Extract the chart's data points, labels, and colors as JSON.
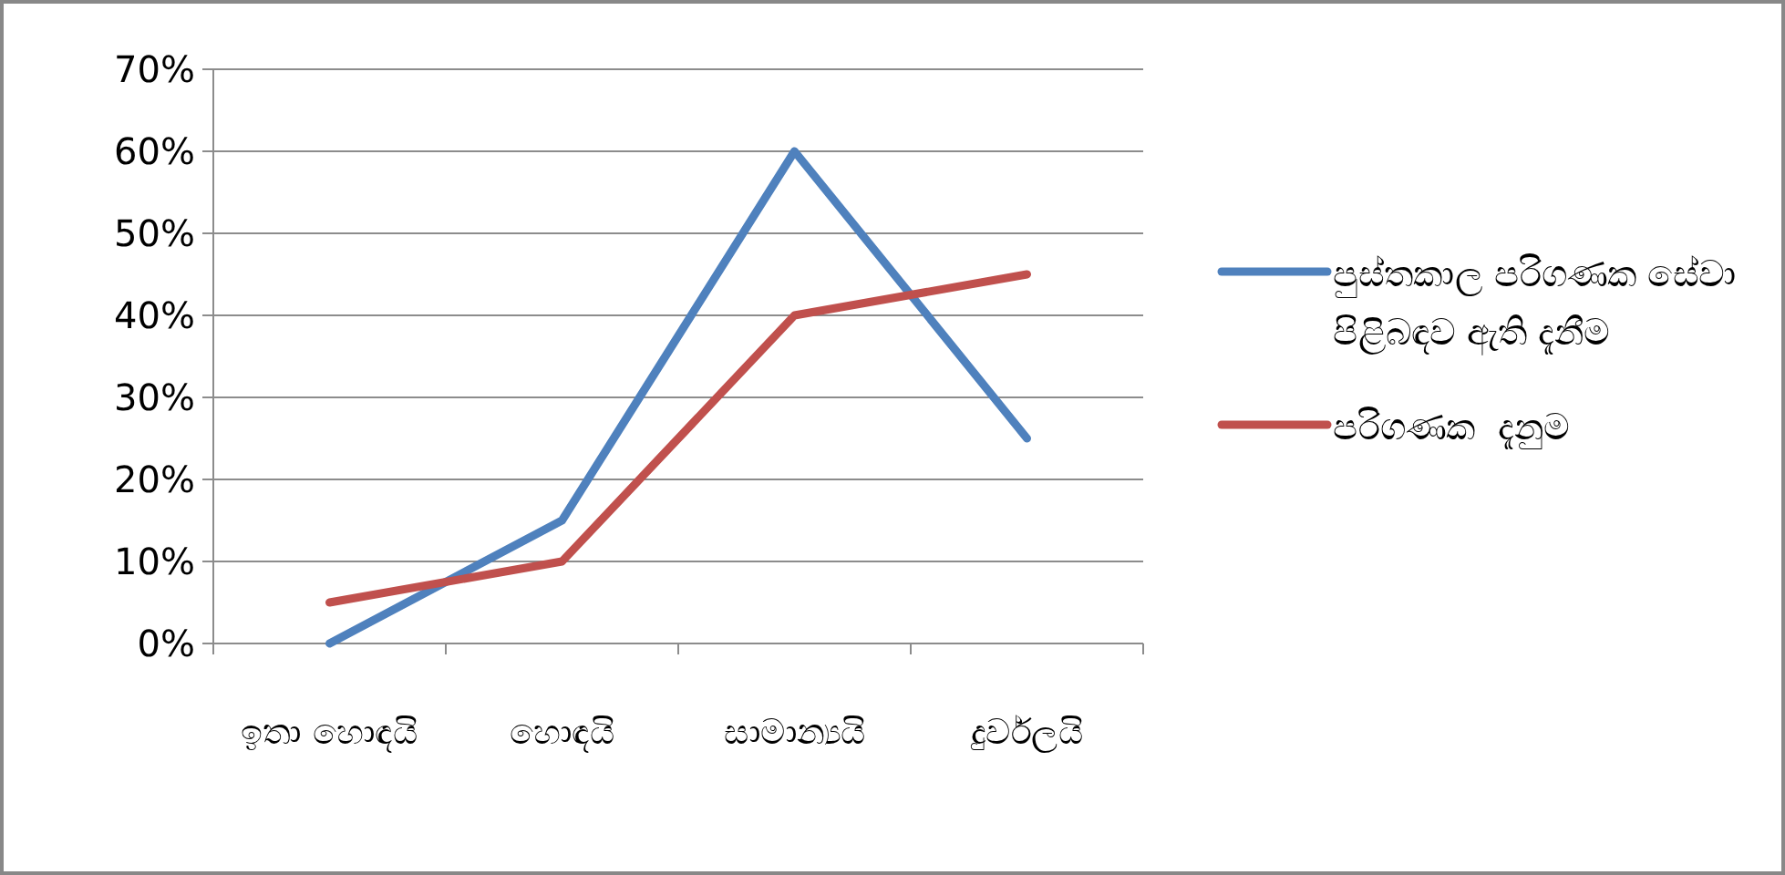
{
  "chart_data": {
    "type": "line",
    "categories": [
      "ඉතා හොඳයි",
      "හොඳයි",
      "සාමාන්‍යයි",
      "දුර්වලයි"
    ],
    "series": [
      {
        "name": "පුස්තකාල පරිගණක සේවා පිළිබඳව ඇති දැනීම",
        "color": "#4f81bd",
        "values": [
          0,
          15,
          60,
          25
        ]
      },
      {
        "name": "පරිගණක  දැනුම",
        "color": "#c0504d",
        "values": [
          5,
          10,
          40,
          45
        ]
      }
    ],
    "ylim": [
      0,
      70
    ],
    "yticks": [
      {
        "value": 0,
        "label": "0%"
      },
      {
        "value": 10,
        "label": "10%"
      },
      {
        "value": 20,
        "label": "20%"
      },
      {
        "value": 30,
        "label": "30%"
      },
      {
        "value": 40,
        "label": "40%"
      },
      {
        "value": 50,
        "label": "50%"
      },
      {
        "value": 60,
        "label": "60%"
      },
      {
        "value": 70,
        "label": "70%"
      }
    ],
    "grid": "y",
    "legend": "right",
    "marker": "none",
    "line_style": "solid"
  }
}
